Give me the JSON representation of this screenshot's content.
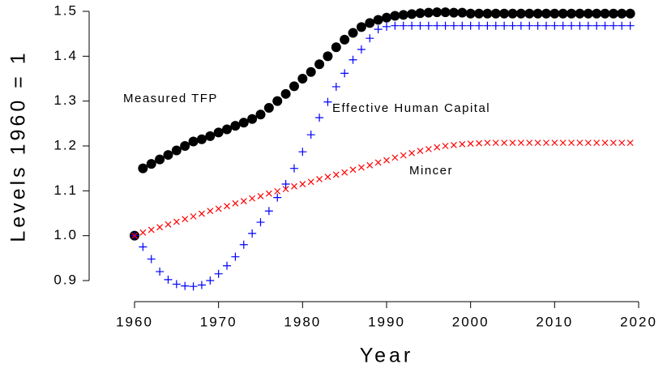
{
  "chart_data": {
    "type": "scatter",
    "xlabel": "Year",
    "ylabel": "Levels 1960 = 1",
    "annotations": [
      "Measured TFP",
      "Effective Human Capital",
      "Mincer"
    ],
    "x": [
      1960,
      1961,
      1962,
      1963,
      1964,
      1965,
      1966,
      1967,
      1968,
      1969,
      1970,
      1971,
      1972,
      1973,
      1974,
      1975,
      1976,
      1977,
      1978,
      1979,
      1980,
      1981,
      1982,
      1983,
      1984,
      1985,
      1986,
      1987,
      1988,
      1989,
      1990,
      1991,
      1992,
      1993,
      1994,
      1995,
      1996,
      1997,
      1998,
      1999,
      2000,
      2001,
      2002,
      2003,
      2004,
      2005,
      2006,
      2007,
      2008,
      2009,
      2010,
      2011,
      2012,
      2013,
      2014,
      2015,
      2016,
      2017,
      2018,
      2019
    ],
    "series": [
      {
        "name": "Measured TFP",
        "color": "#000000",
        "marker": "circle",
        "values": [
          1.0,
          1.15,
          1.16,
          1.17,
          1.18,
          1.19,
          1.2,
          1.21,
          1.215,
          1.222,
          1.23,
          1.237,
          1.245,
          1.252,
          1.26,
          1.27,
          1.285,
          1.3,
          1.316,
          1.333,
          1.35,
          1.365,
          1.382,
          1.4,
          1.42,
          1.437,
          1.452,
          1.465,
          1.474,
          1.481,
          1.486,
          1.49,
          1.492,
          1.494,
          1.496,
          1.497,
          1.498,
          1.498,
          1.497,
          1.497,
          1.495,
          1.495,
          1.495,
          1.495,
          1.495,
          1.495,
          1.495,
          1.495,
          1.495,
          1.495,
          1.495,
          1.495,
          1.495,
          1.495,
          1.495,
          1.495,
          1.495,
          1.495,
          1.495,
          1.495
        ]
      },
      {
        "name": "Effective Human Capital",
        "color": "#0000ff",
        "marker": "plus",
        "values": [
          1.0,
          0.975,
          0.948,
          0.92,
          0.902,
          0.892,
          0.888,
          0.887,
          0.89,
          0.9,
          0.915,
          0.933,
          0.953,
          0.98,
          1.005,
          1.03,
          1.055,
          1.085,
          1.115,
          1.15,
          1.187,
          1.225,
          1.263,
          1.298,
          1.332,
          1.362,
          1.392,
          1.415,
          1.44,
          1.46,
          1.466,
          1.468,
          1.468,
          1.468,
          1.468,
          1.468,
          1.468,
          1.468,
          1.468,
          1.468,
          1.468,
          1.468,
          1.468,
          1.468,
          1.468,
          1.468,
          1.468,
          1.468,
          1.468,
          1.468,
          1.468,
          1.468,
          1.468,
          1.468,
          1.468,
          1.468,
          1.468,
          1.468,
          1.468,
          1.468
        ]
      },
      {
        "name": "Mincer",
        "color": "#ff0000",
        "marker": "cross",
        "values": [
          1.0,
          1.007,
          1.013,
          1.019,
          1.025,
          1.031,
          1.037,
          1.043,
          1.049,
          1.055,
          1.06,
          1.066,
          1.072,
          1.077,
          1.083,
          1.088,
          1.094,
          1.099,
          1.104,
          1.11,
          1.115,
          1.12,
          1.126,
          1.131,
          1.136,
          1.141,
          1.147,
          1.152,
          1.157,
          1.163,
          1.168,
          1.174,
          1.179,
          1.184,
          1.189,
          1.193,
          1.197,
          1.2,
          1.202,
          1.204,
          1.205,
          1.206,
          1.207,
          1.207,
          1.207,
          1.207,
          1.207,
          1.207,
          1.207,
          1.207,
          1.207,
          1.207,
          1.207,
          1.207,
          1.207,
          1.207,
          1.207,
          1.207,
          1.207,
          1.207
        ]
      }
    ],
    "xlim": [
      1960,
      2020
    ],
    "xticks": [
      1960,
      1970,
      1980,
      1990,
      2000,
      2010,
      2020
    ],
    "ylim": [
      0.9,
      1.5
    ],
    "yticks": [
      0.9,
      {
        "value": 1,
        "label": "1.0"
      },
      1.1,
      1.2,
      1.3,
      1.4,
      1.5
    ]
  }
}
